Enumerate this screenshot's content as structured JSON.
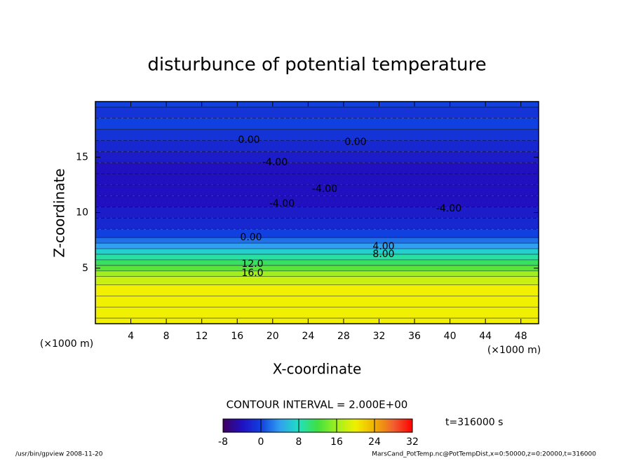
{
  "chart_data": {
    "type": "contour",
    "title": "disturbunce of potential temperature",
    "xlabel": "X-coordinate",
    "ylabel": "Z-coordinate",
    "x_unit_left": "(×1000 m)",
    "x_unit_right": "(×1000 m)",
    "xlim": [
      0,
      50
    ],
    "xticks": [
      4,
      8,
      12,
      16,
      20,
      24,
      28,
      32,
      36,
      40,
      44,
      48
    ],
    "ylim": [
      0,
      20
    ],
    "yticks": [
      5,
      10,
      15
    ],
    "profile": {
      "z": [
        0,
        1,
        2,
        3,
        4,
        4.5,
        5,
        5.5,
        6,
        6.5,
        7,
        7.5,
        8,
        9,
        10,
        11,
        12,
        13,
        14,
        15,
        16,
        17,
        18,
        19,
        20
      ],
      "values": [
        20,
        20,
        20,
        20,
        18,
        16,
        13,
        11,
        9,
        7,
        4,
        2,
        0,
        -2,
        -3,
        -4,
        -4,
        -4,
        -4,
        -3,
        -2,
        -1,
        0,
        -1,
        0
      ]
    },
    "contour_labels": [
      {
        "value": 0,
        "label": "0.00"
      },
      {
        "value": 0,
        "label": "0.00"
      },
      {
        "value": -4,
        "label": "-4.00"
      },
      {
        "value": -4,
        "label": "-4.00"
      },
      {
        "value": -4,
        "label": "-4.00"
      },
      {
        "value": -4,
        "label": "-4.00"
      },
      {
        "value": 0,
        "label": "0.00"
      },
      {
        "value": 4,
        "label": "4.00"
      },
      {
        "value": 8,
        "label": "8.00"
      },
      {
        "value": 12,
        "label": "12.0"
      },
      {
        "value": 16,
        "label": "16.0"
      }
    ],
    "contour_interval": "CONTOUR INTERVAL = 2.000E+00",
    "clim": [
      -8,
      32
    ],
    "cticks": [
      -8,
      0,
      8,
      16,
      24,
      32
    ],
    "colormap": [
      "#400060",
      "#2010c0",
      "#1040e0",
      "#30a0f0",
      "#20e0c0",
      "#40e040",
      "#a0f020",
      "#f0f000",
      "#f0b000",
      "#f06030",
      "#ff0000"
    ],
    "time": "t=316000 s",
    "footer_left": "/usr/bin/gpview   2008-11-20",
    "footer_right": "MarsCand_PotTemp.nc@PotTempDist,x=0:50000,z=0:20000,t=316000"
  }
}
